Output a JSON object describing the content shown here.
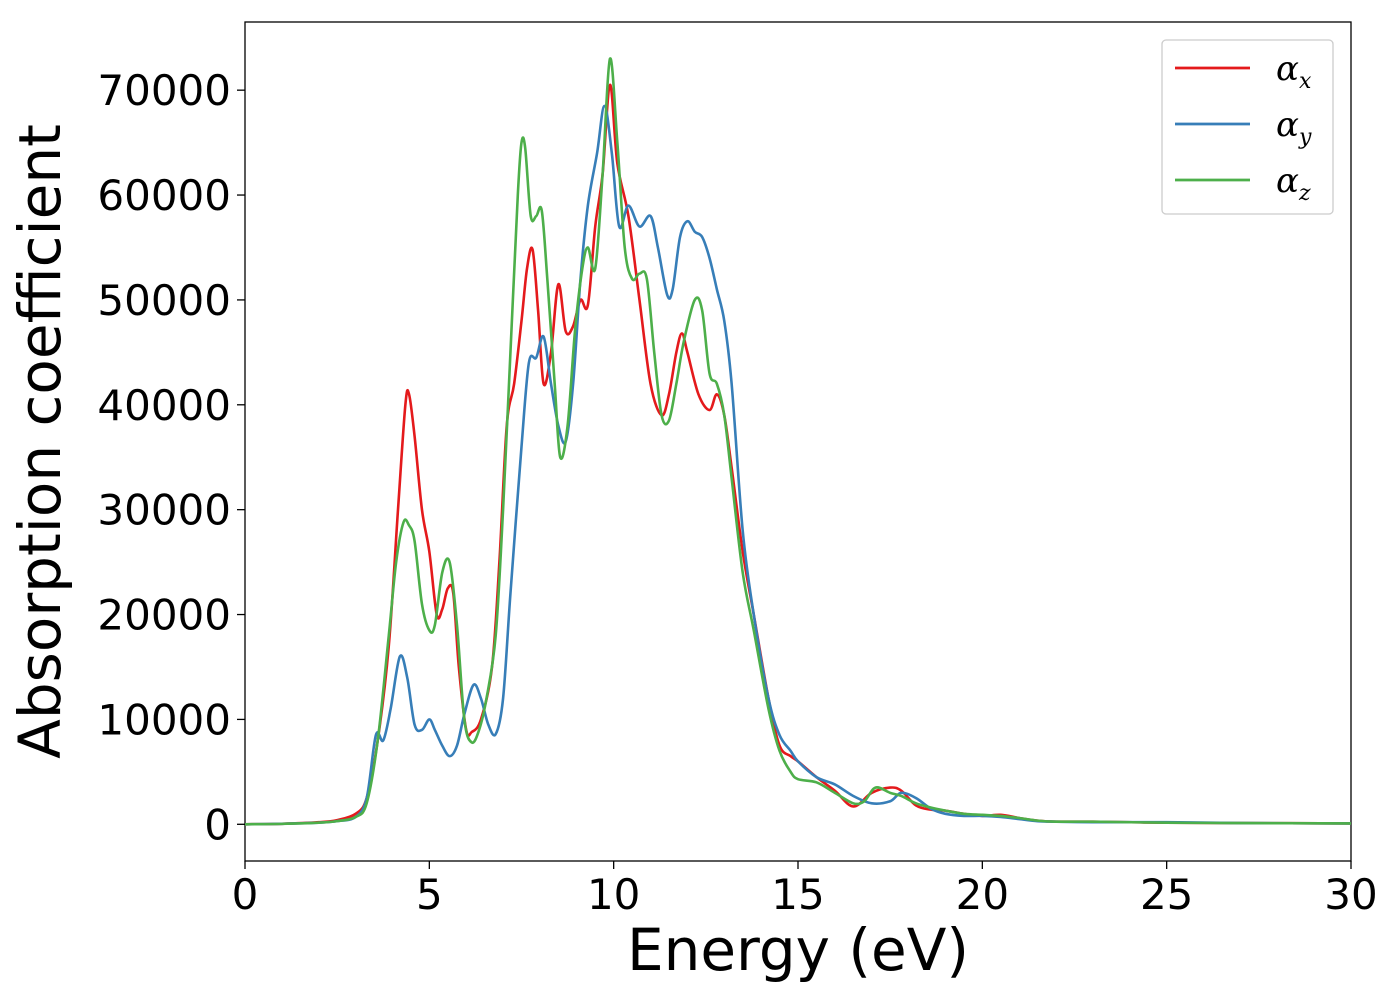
{
  "chart_data": {
    "type": "line",
    "title": "",
    "xlabel": "Energy (eV)",
    "ylabel": "Absorption coefficient",
    "xlim": [
      0,
      30
    ],
    "ylim": [
      -3500,
      76500
    ],
    "xticks": [
      0,
      5,
      10,
      15,
      20,
      25,
      30
    ],
    "yticks": [
      0,
      10000,
      20000,
      30000,
      40000,
      50000,
      60000,
      70000
    ],
    "grid": false,
    "legend": "top-right",
    "series": [
      {
        "name": "α",
        "subscript": "x",
        "color": "#e41a1c",
        "x": [
          0,
          1,
          2,
          2.5,
          3,
          3.3,
          3.6,
          3.9,
          4.15,
          4.35,
          4.45,
          4.6,
          4.8,
          5.0,
          5.2,
          5.35,
          5.5,
          5.65,
          5.8,
          6.0,
          6.15,
          6.4,
          6.7,
          6.9,
          7.1,
          7.3,
          7.5,
          7.65,
          7.8,
          7.95,
          8.1,
          8.3,
          8.5,
          8.7,
          8.9,
          9.1,
          9.3,
          9.5,
          9.7,
          9.9,
          10.1,
          10.4,
          10.7,
          11.0,
          11.3,
          11.5,
          11.7,
          11.85,
          12.0,
          12.3,
          12.6,
          12.8,
          13.0,
          13.2,
          13.5,
          13.8,
          14.2,
          14.5,
          14.8,
          15.0,
          15.5,
          16.0,
          16.5,
          17.0,
          17.5,
          17.8,
          18.2,
          18.6,
          19.0,
          19.5,
          20.0,
          20.5,
          21.0,
          21.5,
          22.0,
          23.0,
          25.0,
          27.0,
          30.0
        ],
        "y": [
          0,
          50,
          200,
          400,
          1000,
          2500,
          8000,
          17000,
          30000,
          40000,
          41000,
          37000,
          30000,
          26000,
          20000,
          20500,
          22500,
          22000,
          15000,
          9000,
          8800,
          10000,
          15000,
          25000,
          38000,
          42000,
          48000,
          53000,
          54800,
          49000,
          42000,
          45000,
          51500,
          47000,
          47500,
          50000,
          49500,
          57000,
          62000,
          70500,
          63000,
          58000,
          50000,
          42000,
          39000,
          41000,
          45000,
          46800,
          45000,
          41000,
          39500,
          41000,
          39000,
          34000,
          26000,
          20000,
          12000,
          7500,
          6500,
          6000,
          4500,
          3200,
          1700,
          3000,
          3500,
          3200,
          1800,
          1400,
          1300,
          1000,
          800,
          900,
          600,
          350,
          250,
          250,
          150,
          120,
          80
        ]
      },
      {
        "name": "α",
        "subscript": "y",
        "color": "#377eb8",
        "x": [
          0,
          1,
          2,
          2.5,
          3,
          3.3,
          3.55,
          3.75,
          3.95,
          4.2,
          4.4,
          4.6,
          4.8,
          5.0,
          5.15,
          5.35,
          5.55,
          5.75,
          5.95,
          6.2,
          6.4,
          6.6,
          6.8,
          7.0,
          7.2,
          7.5,
          7.7,
          7.9,
          8.1,
          8.3,
          8.5,
          8.7,
          8.9,
          9.1,
          9.3,
          9.55,
          9.75,
          9.95,
          10.15,
          10.4,
          10.7,
          11.0,
          11.2,
          11.45,
          11.6,
          11.8,
          12.0,
          12.2,
          12.4,
          12.6,
          12.8,
          13.0,
          13.2,
          13.5,
          13.8,
          14.2,
          14.5,
          14.8,
          15.0,
          15.5,
          16.0,
          16.5,
          17.0,
          17.5,
          17.8,
          18.2,
          18.6,
          19.0,
          19.5,
          20.0,
          20.5,
          21.0,
          21.5,
          22.0,
          23.0,
          25.0,
          27.0,
          30.0
        ],
        "y": [
          0,
          50,
          150,
          300,
          700,
          2500,
          8500,
          8000,
          11000,
          16000,
          14000,
          9500,
          9000,
          10000,
          9000,
          7500,
          6500,
          7500,
          10500,
          13300,
          12000,
          9500,
          8600,
          12000,
          22000,
          36000,
          44000,
          44500,
          46500,
          42000,
          38000,
          36500,
          42000,
          52000,
          59000,
          64000,
          68500,
          64000,
          57000,
          59000,
          57000,
          58000,
          55000,
          50500,
          51000,
          56000,
          57500,
          56500,
          56000,
          54000,
          51000,
          48000,
          42000,
          28000,
          20000,
          12000,
          8500,
          7000,
          6000,
          4500,
          3800,
          2700,
          2000,
          2200,
          3000,
          2500,
          1500,
          1000,
          800,
          800,
          700,
          500,
          300,
          250,
          200,
          200,
          120,
          80
        ]
      },
      {
        "name": "α",
        "subscript": "z",
        "color": "#4daf4a",
        "x": [
          0,
          1,
          2,
          2.5,
          3,
          3.3,
          3.6,
          3.9,
          4.1,
          4.3,
          4.45,
          4.6,
          4.8,
          5.0,
          5.15,
          5.35,
          5.55,
          5.75,
          5.95,
          6.15,
          6.35,
          6.55,
          6.8,
          7.0,
          7.2,
          7.4,
          7.5,
          7.6,
          7.75,
          7.9,
          8.05,
          8.2,
          8.4,
          8.55,
          8.75,
          8.95,
          9.15,
          9.3,
          9.5,
          9.7,
          9.9,
          10.1,
          10.3,
          10.5,
          10.7,
          10.9,
          11.1,
          11.3,
          11.5,
          11.7,
          11.9,
          12.2,
          12.4,
          12.6,
          12.8,
          13.0,
          13.2,
          13.5,
          13.8,
          14.2,
          14.5,
          14.8,
          15.0,
          15.5,
          16.0,
          16.5,
          16.8,
          17.1,
          17.5,
          17.8,
          18.2,
          18.6,
          19.0,
          19.5,
          20.0,
          20.5,
          21.0,
          21.5,
          22.0,
          23.0,
          25.0,
          27.0,
          30.0
        ],
        "y": [
          0,
          40,
          150,
          300,
          700,
          2000,
          8000,
          18000,
          25000,
          28800,
          28500,
          27000,
          21000,
          18500,
          19000,
          24000,
          25000,
          19000,
          10000,
          7800,
          9000,
          12000,
          18000,
          30000,
          45000,
          60000,
          65000,
          64500,
          58000,
          58000,
          58500,
          52000,
          42000,
          35000,
          38000,
          47000,
          53000,
          55000,
          53000,
          62000,
          73000,
          65000,
          55000,
          52000,
          52500,
          52000,
          45000,
          39000,
          38500,
          42000,
          46000,
          50000,
          49000,
          43000,
          42000,
          39000,
          33000,
          24000,
          18500,
          11000,
          7000,
          5000,
          4300,
          4000,
          3000,
          2000,
          2200,
          3500,
          3000,
          2700,
          2000,
          1600,
          1300,
          1000,
          900,
          800,
          600,
          350,
          250,
          250,
          150,
          120,
          80
        ]
      }
    ]
  }
}
